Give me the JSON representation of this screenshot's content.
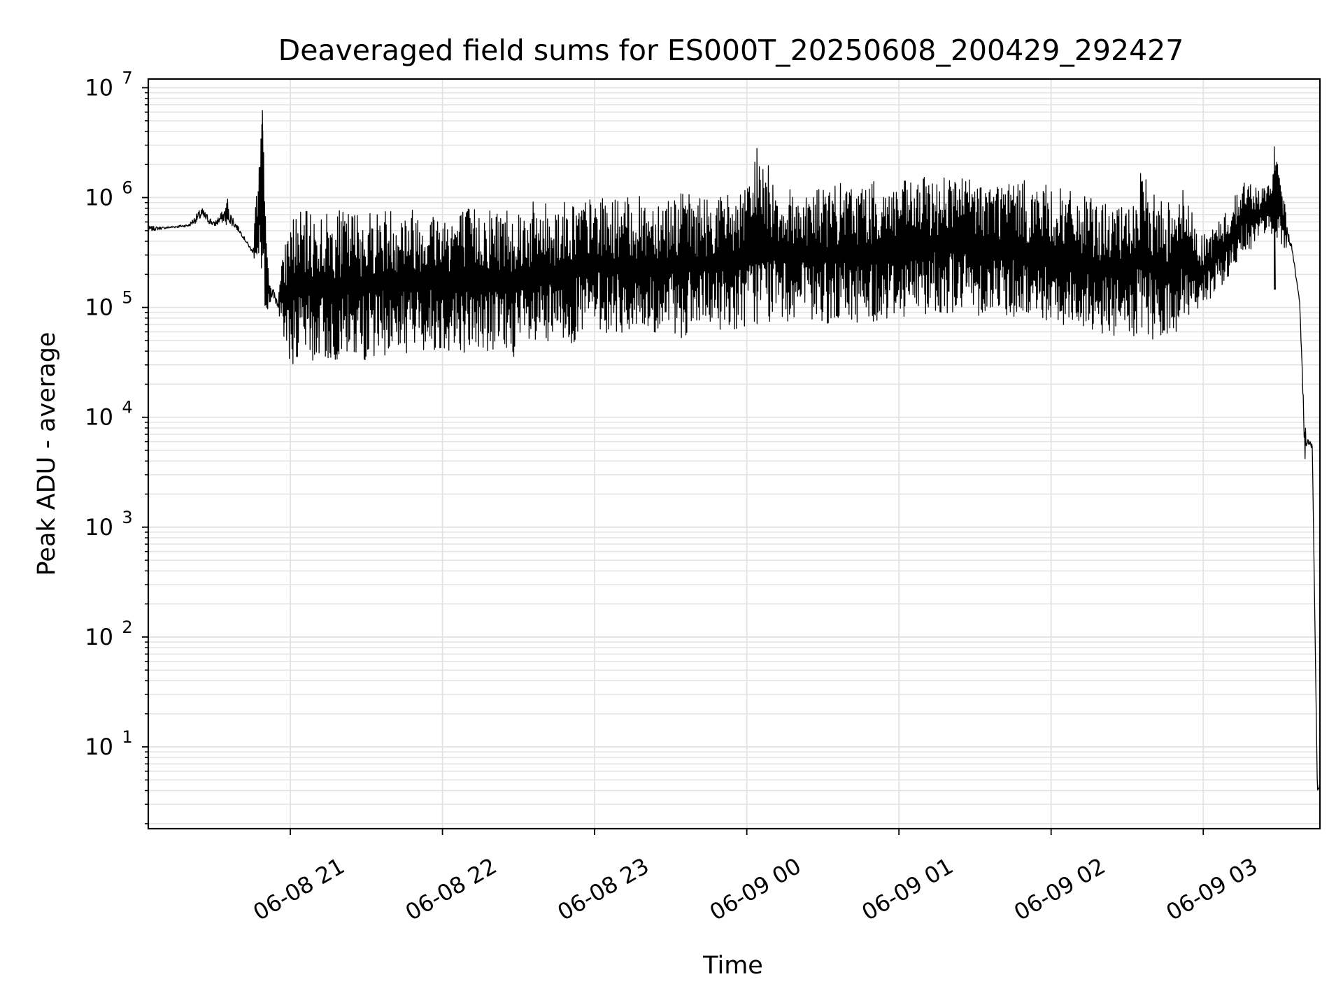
{
  "chart_data": {
    "type": "line",
    "title": "Deaveraged field sums for ES000T_20250608_200429_292427",
    "xlabel": "Time",
    "ylabel": "Peak ADU - average",
    "yscale": "log",
    "ylim": [
      1.8,
      12000000
    ],
    "xlim": [
      "2025-06-08 20:04",
      "2025-06-09 03:46"
    ],
    "grid": true,
    "line_color": "#000000",
    "grid_color": "#e3e3e3",
    "x_ticks": [
      {
        "value": "2025-06-08 21:00",
        "label": "06-08 21"
      },
      {
        "value": "2025-06-08 22:00",
        "label": "06-08 22"
      },
      {
        "value": "2025-06-08 23:00",
        "label": "06-08 23"
      },
      {
        "value": "2025-06-09 00:00",
        "label": "06-09 00"
      },
      {
        "value": "2025-06-09 01:00",
        "label": "06-09 01"
      },
      {
        "value": "2025-06-09 02:00",
        "label": "06-09 02"
      },
      {
        "value": "2025-06-09 03:00",
        "label": "06-09 03"
      }
    ],
    "y_ticks": [
      {
        "value": 10,
        "base": "10",
        "exp": "1"
      },
      {
        "value": 100,
        "base": "10",
        "exp": "2"
      },
      {
        "value": 1000,
        "base": "10",
        "exp": "3"
      },
      {
        "value": 10000,
        "base": "10",
        "exp": "4"
      },
      {
        "value": 100000,
        "base": "10",
        "exp": "5"
      },
      {
        "value": 1000000,
        "base": "10",
        "exp": "6"
      },
      {
        "value": 10000000,
        "base": "10",
        "exp": "7"
      }
    ],
    "series": [
      {
        "values_description_envelope": true,
        "upper": [
          [
            "2025-06-08 20:04",
            600000
          ],
          [
            "2025-06-08 20:10",
            560000
          ],
          [
            "2025-06-08 20:20",
            600000
          ],
          [
            "2025-06-08 20:25",
            1000000
          ],
          [
            "2025-06-08 20:30",
            650000
          ],
          [
            "2025-06-08 20:35",
            1100000
          ],
          [
            "2025-06-08 20:40",
            550000
          ],
          [
            "2025-06-08 20:45",
            350000
          ],
          [
            "2025-06-08 20:49",
            6200000
          ],
          [
            "2025-06-08 20:51",
            250000
          ],
          [
            "2025-06-08 20:55",
            150000
          ],
          [
            "2025-06-08 21:00",
            750000
          ],
          [
            "2025-06-08 21:15",
            750000
          ],
          [
            "2025-06-08 21:30",
            800000
          ],
          [
            "2025-06-08 21:45",
            850000
          ],
          [
            "2025-06-08 22:00",
            800000
          ],
          [
            "2025-06-08 22:15",
            850000
          ],
          [
            "2025-06-08 22:30",
            900000
          ],
          [
            "2025-06-08 22:45",
            950000
          ],
          [
            "2025-06-08 23:00",
            1000000
          ],
          [
            "2025-06-08 23:15",
            1000000
          ],
          [
            "2025-06-08 23:30",
            1150000
          ],
          [
            "2025-06-08 23:45",
            1050000
          ],
          [
            "2025-06-09 00:00",
            1200000
          ],
          [
            "2025-06-09 00:04",
            2800000
          ],
          [
            "2025-06-09 00:15",
            1200000
          ],
          [
            "2025-06-09 00:30",
            1300000
          ],
          [
            "2025-06-09 00:45",
            1400000
          ],
          [
            "2025-06-09 01:00",
            1400000
          ],
          [
            "2025-06-09 01:15",
            1600000
          ],
          [
            "2025-06-09 01:18",
            1800000
          ],
          [
            "2025-06-09 01:30",
            1500000
          ],
          [
            "2025-06-09 01:45",
            1500000
          ],
          [
            "2025-06-09 02:00",
            1300000
          ],
          [
            "2025-06-09 02:15",
            1000000
          ],
          [
            "2025-06-09 02:30",
            800000
          ],
          [
            "2025-06-09 02:35",
            1700000
          ],
          [
            "2025-06-09 02:45",
            900000
          ],
          [
            "2025-06-09 02:50",
            1600000
          ],
          [
            "2025-06-09 03:00",
            450000
          ],
          [
            "2025-06-09 03:10",
            800000
          ],
          [
            "2025-06-09 03:15",
            1500000
          ],
          [
            "2025-06-09 03:25",
            1200000
          ],
          [
            "2025-06-09 03:28",
            2900000
          ],
          [
            "2025-06-09 03:35",
            400000
          ],
          [
            "2025-06-09 03:38",
            120000
          ],
          [
            "2025-06-09 03:40",
            10000
          ],
          [
            "2025-06-09 03:43",
            6000
          ],
          [
            "2025-06-09 03:45",
            4
          ],
          [
            "2025-06-09 03:46",
            5
          ]
        ],
        "lower": [
          [
            "2025-06-08 20:04",
            450000
          ],
          [
            "2025-06-08 20:10",
            500000
          ],
          [
            "2025-06-08 20:20",
            520000
          ],
          [
            "2025-06-08 20:30",
            500000
          ],
          [
            "2025-06-08 20:40",
            450000
          ],
          [
            "2025-06-08 20:45",
            300000
          ],
          [
            "2025-06-08 20:50",
            100000
          ],
          [
            "2025-06-08 20:55",
            85000
          ],
          [
            "2025-06-08 21:00",
            30000
          ],
          [
            "2025-06-08 21:15",
            32000
          ],
          [
            "2025-06-08 21:30",
            33000
          ],
          [
            "2025-06-08 21:45",
            38000
          ],
          [
            "2025-06-08 22:00",
            40000
          ],
          [
            "2025-06-08 22:15",
            38000
          ],
          [
            "2025-06-08 22:30",
            35000
          ],
          [
            "2025-06-08 22:45",
            40000
          ],
          [
            "2025-06-08 23:00",
            60000
          ],
          [
            "2025-06-08 23:15",
            55000
          ],
          [
            "2025-06-08 23:30",
            50000
          ],
          [
            "2025-06-08 23:45",
            60000
          ],
          [
            "2025-06-09 00:00",
            65000
          ],
          [
            "2025-06-09 00:15",
            75000
          ],
          [
            "2025-06-09 00:30",
            70000
          ],
          [
            "2025-06-09 00:45",
            70000
          ],
          [
            "2025-06-09 01:00",
            80000
          ],
          [
            "2025-06-09 01:15",
            90000
          ],
          [
            "2025-06-09 01:30",
            85000
          ],
          [
            "2025-06-09 01:45",
            80000
          ],
          [
            "2025-06-09 02:00",
            70000
          ],
          [
            "2025-06-09 02:15",
            60000
          ],
          [
            "2025-06-09 02:30",
            50000
          ],
          [
            "2025-06-09 02:45",
            45000
          ],
          [
            "2025-06-09 03:00",
            100000
          ],
          [
            "2025-06-09 03:15",
            250000
          ],
          [
            "2025-06-09 03:25",
            500000
          ],
          [
            "2025-06-09 03:35",
            300000
          ],
          [
            "2025-06-09 03:38",
            100000
          ],
          [
            "2025-06-09 03:40",
            4000
          ],
          [
            "2025-06-09 03:43",
            5000
          ],
          [
            "2025-06-09 03:45",
            4
          ],
          [
            "2025-06-09 03:46",
            4
          ]
        ]
      }
    ]
  }
}
